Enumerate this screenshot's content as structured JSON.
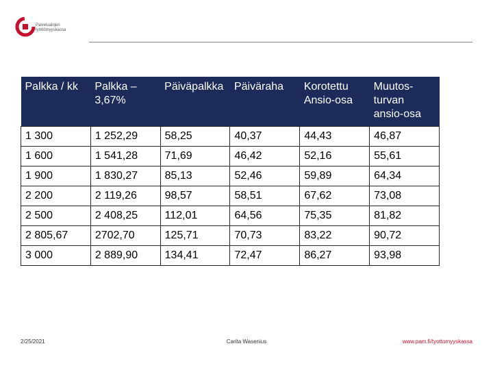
{
  "logo": {
    "text": "Palvelualojen työttömyyskassa"
  },
  "table": {
    "header": [
      "Palkka / kk",
      "Palkka – 3,67%",
      "Päiväpalkka",
      "Päiväraha",
      "Korotettu Ansio-osa",
      "Muutos-turvan ansio-osa"
    ],
    "rows": [
      [
        "1 300",
        "1 252,29",
        "58,25",
        "40,37",
        "44,43",
        "46,87"
      ],
      [
        "1 600",
        "1 541,28",
        "71,69",
        "46,42",
        "52,16",
        "55,61"
      ],
      [
        "1 900",
        "1 830,27",
        "85,13",
        "52,46",
        "59,89",
        "64,34"
      ],
      [
        "2 200",
        "2 119,26",
        "98,57",
        "58,51",
        "67,62",
        "73,08"
      ],
      [
        "2 500",
        "2 408,25",
        "112,01",
        "64,56",
        "75,35",
        "81,82"
      ],
      [
        "2 805,67",
        "2702,70",
        "125,71",
        "70,73",
        "83,22",
        "90,72"
      ],
      [
        "3 000",
        "2 889,90",
        "134,41",
        "72,47",
        "86,27",
        "93,98"
      ]
    ]
  },
  "footer": {
    "date": "2/25/2021",
    "author": "Carita Wasenius",
    "url": "www.pam.fi/tyottomyyskassa"
  }
}
